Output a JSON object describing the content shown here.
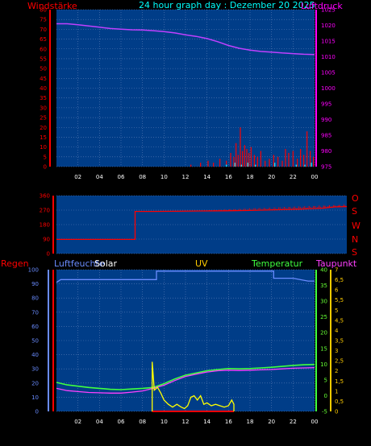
{
  "header": {
    "left_label": "Windstärke",
    "title": "24 hour graph day : Dezember 20 2025",
    "right_label": "Luftdruck"
  },
  "colors": {
    "background": "#000000",
    "plot_bg": "#003d88",
    "grid": "#5a7fb8",
    "wind": "#ff0000",
    "gust": "#00e5ff",
    "pressure": "#c040ff",
    "direction": "#ff0000",
    "humidity": "#6a8cff",
    "solar": "#ffff00",
    "temperature": "#40ff40",
    "dewpoint": "#ff40ff",
    "left_axis_text": "#ff0000",
    "pressure_axis_text": "#ff00ff",
    "temp_axis_text": "#66ff33",
    "uv_axis_text": "#ffcc00"
  },
  "x_ticks": [
    "02",
    "04",
    "06",
    "08",
    "10",
    "12",
    "14",
    "16",
    "18",
    "20",
    "22",
    "00"
  ],
  "chart_data": [
    {
      "type": "line",
      "panel": "wind-pressure",
      "left_axis": {
        "label": "Windstärke",
        "ticks": [
          0,
          5,
          10,
          15,
          20,
          25,
          30,
          35,
          40,
          45,
          50,
          55,
          60,
          65,
          70,
          75,
          80
        ],
        "ylim": [
          0,
          80
        ]
      },
      "right_axis": {
        "label": "Luftdruck",
        "ticks": [
          975,
          980,
          985,
          990,
          995,
          1000,
          1005,
          1010,
          1015,
          1020,
          1025
        ],
        "ylim": [
          975,
          1025
        ]
      },
      "series": [
        {
          "name": "Luftdruck",
          "x": [
            0,
            1,
            2,
            3,
            4,
            5,
            6,
            7,
            8,
            9,
            10,
            11,
            12,
            13,
            14,
            15,
            16,
            17,
            18,
            19,
            20,
            21,
            22,
            23,
            24
          ],
          "values": [
            1020.5,
            1020.5,
            1020.2,
            1019.8,
            1019.4,
            1019.0,
            1018.8,
            1018.6,
            1018.5,
            1018.3,
            1018.0,
            1017.6,
            1017.0,
            1016.5,
            1015.8,
            1014.8,
            1013.6,
            1012.7,
            1012.1,
            1011.7,
            1011.5,
            1011.2,
            1011.0,
            1010.8,
            1010.7
          ]
        },
        {
          "name": "Windstärke",
          "x": [
            12.5,
            13.4,
            14.1,
            14.6,
            15.2,
            15.8,
            16.2,
            16.5,
            16.7,
            16.9,
            17.1,
            17.3,
            17.5,
            17.7,
            17.9,
            18.1,
            18.4,
            18.7,
            19.0,
            19.4,
            19.8,
            20.2,
            20.6,
            21.0,
            21.3,
            21.6,
            22.0,
            22.4,
            22.7,
            23.0,
            23.3,
            23.6,
            23.9
          ],
          "values": [
            1,
            2,
            3,
            2,
            4,
            3,
            7,
            5,
            12,
            6,
            20,
            8,
            11,
            9,
            7,
            10,
            6,
            5,
            8,
            3,
            4,
            6,
            5,
            3,
            9,
            7,
            8,
            4,
            9,
            6,
            18,
            8,
            5
          ]
        },
        {
          "name": "Böen",
          "x": [
            15.8,
            16.6,
            17.2,
            17.8,
            18.5,
            20.3,
            22.3,
            23.1,
            23.7
          ],
          "values": [
            1,
            2,
            1,
            2,
            1,
            2,
            1,
            1,
            2
          ]
        }
      ]
    },
    {
      "type": "line",
      "panel": "wind-direction",
      "left_axis": {
        "ticks": [
          0,
          90,
          180,
          270,
          360
        ],
        "ylim": [
          0,
          360
        ]
      },
      "right_labels": [
        "O",
        "S",
        "W",
        "N",
        "S"
      ],
      "series": [
        {
          "name": "Windrichtung",
          "x": [
            0,
            6.5,
            6.5,
            8,
            10,
            12,
            14,
            16,
            18,
            20,
            22,
            23,
            24
          ],
          "values": [
            88,
            88,
            262,
            262,
            263,
            265,
            266,
            268,
            272,
            276,
            282,
            290,
            292
          ]
        }
      ]
    },
    {
      "type": "line",
      "panel": "environment",
      "labels": [
        "Regen",
        "Luftfeuchte",
        "Solar",
        "UV",
        "Temperatur",
        "Taupunkt"
      ],
      "left_axis": {
        "ticks": [
          0,
          10,
          20,
          30,
          40,
          50,
          60,
          70,
          80,
          90,
          100
        ],
        "ylim": [
          0,
          100
        ]
      },
      "temp_axis": {
        "ticks": [
          -5,
          0,
          5,
          10,
          15,
          20,
          25,
          30,
          35,
          40
        ],
        "ylim": [
          -5,
          40
        ]
      },
      "uv_axis": {
        "ticks": [
          0,
          0.5,
          1,
          1.5,
          2,
          2.5,
          3,
          3.5,
          4,
          4.5,
          5,
          5.5,
          6,
          6.5,
          7
        ],
        "ylim": [
          0,
          7
        ]
      },
      "series": [
        {
          "name": "Luftfeuchte",
          "x": [
            0,
            0.4,
            2,
            4,
            6,
            8,
            9.3,
            9.3,
            12,
            16,
            20.2,
            20.2,
            22,
            23.4,
            24
          ],
          "values": [
            91,
            93,
            93,
            93,
            93,
            93,
            93,
            99,
            99,
            99,
            99,
            94,
            94,
            92,
            92
          ]
        },
        {
          "name": "Temperatur",
          "x": [
            0,
            1,
            2,
            3,
            4,
            5,
            6,
            7,
            8,
            9,
            10,
            11,
            12,
            13,
            14,
            15,
            16,
            17,
            18,
            19,
            20,
            21,
            22,
            23,
            24
          ],
          "values": [
            4.2,
            3.4,
            3.0,
            2.6,
            2.3,
            2.0,
            1.9,
            2.1,
            2.3,
            2.6,
            3.8,
            5.3,
            6.5,
            7.2,
            7.9,
            8.3,
            8.6,
            8.5,
            8.6,
            8.8,
            9.0,
            9.3,
            9.6,
            9.8,
            9.9
          ]
        },
        {
          "name": "Taupunkt",
          "x": [
            0,
            1,
            2,
            3,
            4,
            5,
            6,
            7,
            8,
            9,
            10,
            11,
            12,
            13,
            14,
            15,
            16,
            17,
            18,
            19,
            20,
            21,
            22,
            23,
            24
          ],
          "values": [
            2.3,
            1.6,
            1.3,
            1.0,
            0.9,
            0.8,
            0.8,
            1.1,
            1.5,
            2.3,
            3.3,
            4.8,
            6.1,
            6.8,
            7.5,
            7.9,
            8.1,
            8.0,
            8.1,
            8.2,
            8.3,
            8.5,
            8.7,
            8.8,
            8.9
          ]
        },
        {
          "name": "Solar",
          "x": [
            8.9,
            8.9,
            9.1,
            9.4,
            9.7,
            10.0,
            10.4,
            10.8,
            11.2,
            11.6,
            11.9,
            12.2,
            12.5,
            12.8,
            13.1,
            13.4,
            13.7,
            14.0,
            14.4,
            14.8,
            15.2,
            15.6,
            16.0,
            16.3,
            16.5,
            16.5
          ],
          "values": [
            0,
            35,
            15,
            17,
            13,
            8,
            5,
            3,
            5,
            3,
            2,
            4,
            10,
            11,
            8,
            11,
            5,
            6,
            4,
            5,
            4,
            3,
            4,
            8,
            5,
            0
          ]
        }
      ]
    }
  ]
}
